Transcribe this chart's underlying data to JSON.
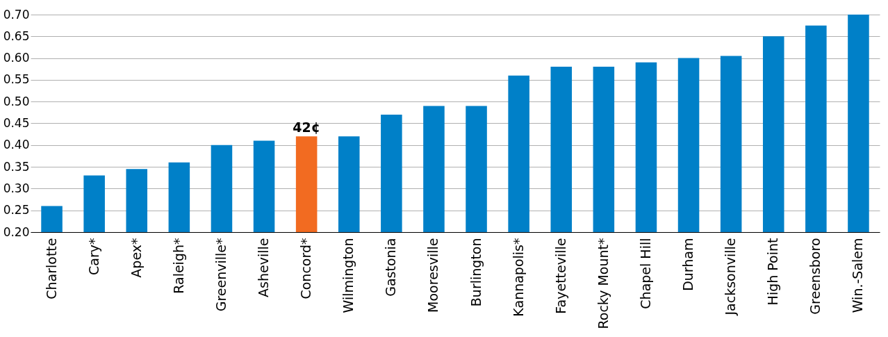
{
  "chart_data": {
    "type": "bar",
    "categories": [
      "Charlotte",
      "Cary*",
      "Apex*",
      "Raleigh*",
      "Greenville*",
      "Asheville",
      "Concord*",
      "Wilmington",
      "Gastonia",
      "Mooresville",
      "Burlington",
      "Kannapolis*",
      "Fayetteville",
      "Rocky Mount*",
      "Chapel Hill",
      "Durham",
      "Jacksonville",
      "High Point",
      "Greensboro",
      "Win.-Salem"
    ],
    "values": [
      0.26,
      0.33,
      0.345,
      0.36,
      0.4,
      0.41,
      0.42,
      0.42,
      0.47,
      0.49,
      0.49,
      0.56,
      0.58,
      0.58,
      0.59,
      0.6,
      0.605,
      0.65,
      0.675,
      0.7
    ],
    "colors": [
      "#0080c8",
      "#0080c8",
      "#0080c8",
      "#0080c8",
      "#0080c8",
      "#0080c8",
      "#f26b21",
      "#0080c8",
      "#0080c8",
      "#0080c8",
      "#0080c8",
      "#0080c8",
      "#0080c8",
      "#0080c8",
      "#0080c8",
      "#0080c8",
      "#0080c8",
      "#0080c8",
      "#0080c8",
      "#0080c8"
    ],
    "annotations": [
      {
        "text": "42¢",
        "x": "Concord*",
        "y": 0.42
      }
    ],
    "ylim": [
      0.2,
      0.7
    ],
    "yticks": [
      {
        "value": 0.2,
        "label": "0.20"
      },
      {
        "value": 0.25,
        "label": "0.25"
      },
      {
        "value": 0.3,
        "label": "0.30"
      },
      {
        "value": 0.35,
        "label": "0.35"
      },
      {
        "value": 0.4,
        "label": "0.40"
      },
      {
        "value": 0.45,
        "label": "0.45"
      },
      {
        "value": 0.5,
        "label": "0.50"
      },
      {
        "value": 0.55,
        "label": "0.55"
      },
      {
        "value": 0.6,
        "label": "0.60"
      },
      {
        "value": 0.65,
        "label": "0.65"
      },
      {
        "value": 0.7,
        "label": "0.70"
      }
    ],
    "grid": "y"
  }
}
